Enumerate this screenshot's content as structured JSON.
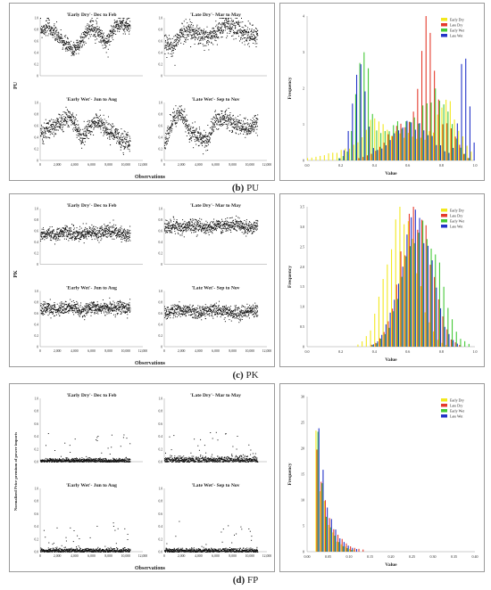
{
  "figure": {
    "captions": [
      {
        "letter": "(b)",
        "name": "PU"
      },
      {
        "letter": "(c)",
        "name": "PK"
      },
      {
        "letter": "(d)",
        "name": "FP"
      }
    ]
  },
  "colors": {
    "Early Dry": "#f2e81f",
    "Late Dry": "#e53a2c",
    "Early Wet": "#43c936",
    "Late Wet": "#2233c9",
    "dots": "#111111"
  },
  "chart_data": [
    {
      "id": "PU-scatter",
      "type": "scatter",
      "ylabel": "PU",
      "xlabel": "Observations",
      "xlim": [
        0,
        12000
      ],
      "ylim": [
        0,
        1
      ],
      "xticks": [
        "0",
        "2,000",
        "4,000",
        "6,000",
        "8,000",
        "10,000",
        "12,000"
      ],
      "yticks": [
        "0",
        "0.2",
        "0.4",
        "0.6",
        "0.8",
        "1.0"
      ],
      "subplots": [
        {
          "title": "'Early Dry'- Dec to Feb",
          "n": 10500,
          "profile": [
            0.8,
            0.85,
            0.7,
            0.55,
            0.45,
            0.6,
            0.85,
            0.8,
            0.55,
            0.85,
            0.9,
            0.85
          ],
          "spread": 0.07
        },
        {
          "title": "'Late Dry'- Mar to May",
          "n": 10900,
          "profile": [
            0.55,
            0.5,
            0.75,
            0.8,
            0.7,
            0.65,
            0.75,
            0.9,
            0.85,
            0.8,
            0.7,
            0.7
          ],
          "spread": 0.09
        },
        {
          "title": "'Early Wet'- Jun to Aug",
          "n": 10500,
          "profile": [
            0.45,
            0.55,
            0.6,
            0.75,
            0.7,
            0.4,
            0.55,
            0.7,
            0.55,
            0.45,
            0.35,
            0.3
          ],
          "spread": 0.08
        },
        {
          "title": "'Late Wet'- Sep to Nov",
          "n": 10900,
          "profile": [
            0.3,
            0.75,
            0.8,
            0.5,
            0.4,
            0.35,
            0.7,
            0.75,
            0.65,
            0.6,
            0.55,
            0.65
          ],
          "spread": 0.08
        }
      ]
    },
    {
      "id": "PU-hist",
      "type": "bar",
      "xlabel": "Value",
      "ylabel": "Frequency",
      "xlim": [
        0,
        1
      ],
      "ylim": [
        0,
        4
      ],
      "xticks": [
        "0.0",
        "0.2",
        "0.4",
        "0.6",
        "0.8",
        "1.0"
      ],
      "yticks": [
        "0",
        "1",
        "2",
        "3",
        "4"
      ],
      "legend": [
        "Early Dry",
        "Late Dry",
        "Early Wet",
        "Late Wet"
      ],
      "bins": 40,
      "series": [
        {
          "name": "Early Dry",
          "peaks": [
            [
              0.55,
              0.25,
              0.7
            ],
            [
              0.85,
              0.06,
              1.2
            ],
            [
              0.4,
              0.05,
              0.5
            ]
          ]
        },
        {
          "name": "Late Dry",
          "peaks": [
            [
              0.72,
              0.04,
              3.8
            ],
            [
              0.6,
              0.12,
              1.0
            ],
            [
              0.85,
              0.05,
              0.8
            ]
          ]
        },
        {
          "name": "Early Wet",
          "peaks": [
            [
              0.33,
              0.04,
              2.5
            ],
            [
              0.55,
              0.15,
              1.0
            ],
            [
              0.78,
              0.07,
              1.6
            ]
          ]
        },
        {
          "name": "Late Wet",
          "peaks": [
            [
              0.3,
              0.04,
              2.7
            ],
            [
              0.62,
              0.12,
              1.0
            ],
            [
              0.93,
              0.03,
              2.8
            ]
          ]
        }
      ]
    },
    {
      "id": "PK-scatter",
      "type": "scatter",
      "ylabel": "PK",
      "xlabel": "Observations",
      "xlim": [
        0,
        12000
      ],
      "ylim": [
        0,
        1
      ],
      "xticks": [
        "0",
        "2,000",
        "4,000",
        "6,000",
        "8,000",
        "10,000",
        "12,000"
      ],
      "yticks": [
        "0",
        "0.2",
        "0.4",
        "0.6",
        "0.8",
        "1.0"
      ],
      "subplots": [
        {
          "title": "'Early Dry'- Dec to Feb",
          "n": 10500,
          "profile": [
            0.55,
            0.55,
            0.55,
            0.6,
            0.55,
            0.55,
            0.6,
            0.55,
            0.6,
            0.6,
            0.55,
            0.55
          ],
          "spread": 0.06
        },
        {
          "title": "'Late Dry'- Mar to May",
          "n": 10900,
          "profile": [
            0.65,
            0.7,
            0.65,
            0.7,
            0.7,
            0.65,
            0.7,
            0.7,
            0.7,
            0.7,
            0.65,
            0.7
          ],
          "spread": 0.06
        },
        {
          "title": "'Early Wet'- Jun to Aug",
          "n": 10500,
          "profile": [
            0.65,
            0.7,
            0.65,
            0.7,
            0.7,
            0.65,
            0.7,
            0.7,
            0.7,
            0.7,
            0.7,
            0.7
          ],
          "spread": 0.06
        },
        {
          "title": "'Late Wet'- Sep to Nov",
          "n": 10900,
          "profile": [
            0.6,
            0.65,
            0.65,
            0.65,
            0.6,
            0.65,
            0.65,
            0.65,
            0.6,
            0.6,
            0.65,
            0.65
          ],
          "spread": 0.06
        }
      ]
    },
    {
      "id": "PK-hist",
      "type": "bar",
      "xlabel": "Value",
      "ylabel": "Frequency",
      "xlim": [
        0,
        1
      ],
      "ylim": [
        0,
        3.5
      ],
      "xticks": [
        "0.0",
        "0.2",
        "0.4",
        "0.6",
        "0.8",
        "1.0"
      ],
      "yticks": [
        "0",
        "0.5",
        "1.0",
        "1.5",
        "2.0",
        "2.5",
        "3.0",
        "3.5"
      ],
      "legend": [
        "Early Dry",
        "Late Dry",
        "Early Wet",
        "Late Wet"
      ],
      "bins": 40,
      "series": [
        {
          "name": "Early Dry",
          "peaks": [
            [
              0.57,
              0.09,
              3.5
            ]
          ]
        },
        {
          "name": "Late Dry",
          "peaks": [
            [
              0.65,
              0.09,
              3.4
            ]
          ]
        },
        {
          "name": "Early Wet",
          "peaks": [
            [
              0.68,
              0.1,
              3.3
            ]
          ]
        },
        {
          "name": "Late Wet",
          "peaks": [
            [
              0.64,
              0.09,
              3.4
            ]
          ]
        }
      ]
    },
    {
      "id": "FP-scatter",
      "type": "scatter",
      "ylabel": "Normalized Price premium of power imports",
      "xlabel": "Observations",
      "xlim": [
        0,
        12000
      ],
      "ylim": [
        0,
        1
      ],
      "xticks": [
        "0",
        "2,000",
        "4,000",
        "6,000",
        "8,000",
        "10,000",
        "12,000"
      ],
      "yticks": [
        "0.0",
        "0.2",
        "0.4",
        "0.6",
        "0.8",
        "1.0"
      ],
      "subplots": [
        {
          "title": "'Early Dry'- Dec to Feb",
          "n": 10500,
          "profile": [
            0.02,
            0.02,
            0.02,
            0.02,
            0.02,
            0.02,
            0.02,
            0.02,
            0.02,
            0.02,
            0.02,
            0.02
          ],
          "spread": 0.02
        },
        {
          "title": "'Late Dry'- Mar to May",
          "n": 10900,
          "profile": [
            0.03,
            0.03,
            0.03,
            0.03,
            0.03,
            0.03,
            0.03,
            0.03,
            0.03,
            0.03,
            0.03,
            0.03
          ],
          "spread": 0.03
        },
        {
          "title": "'Early Wet'- Jun to Aug",
          "n": 10500,
          "profile": [
            0.02,
            0.02,
            0.02,
            0.02,
            0.02,
            0.02,
            0.02,
            0.02,
            0.02,
            0.02,
            0.02,
            0.02
          ],
          "spread": 0.02
        },
        {
          "title": "'Late Wet'- Sep to Nov",
          "n": 10900,
          "profile": [
            0.02,
            0.02,
            0.02,
            0.02,
            0.02,
            0.02,
            0.02,
            0.02,
            0.02,
            0.02,
            0.02,
            0.02
          ],
          "spread": 0.02
        }
      ]
    },
    {
      "id": "FP-hist",
      "type": "bar",
      "xlabel": "Value",
      "ylabel": "Frequency",
      "xlim": [
        -0.02,
        0.42
      ],
      "ylim": [
        0,
        33
      ],
      "xticks": [
        "0.00",
        "0.05",
        "0.10",
        "0.15",
        "0.20",
        "0.25",
        "0.30",
        "0.35",
        "0.40"
      ],
      "yticks": [
        "0",
        "5",
        "10",
        "15",
        "20",
        "25",
        "30"
      ],
      "legend": [
        "Early Dry",
        "Late Dry",
        "Early Wet",
        "Late Wet"
      ],
      "bins": 40,
      "series": [
        {
          "name": "Early Dry",
          "decay": [
            30.5,
            0.025
          ]
        },
        {
          "name": "Late Dry",
          "decay": [
            31.0,
            0.03
          ]
        },
        {
          "name": "Early Wet",
          "decay": [
            32.0,
            0.022
          ]
        },
        {
          "name": "Late Wet",
          "decay": [
            31.5,
            0.026
          ]
        }
      ]
    }
  ]
}
